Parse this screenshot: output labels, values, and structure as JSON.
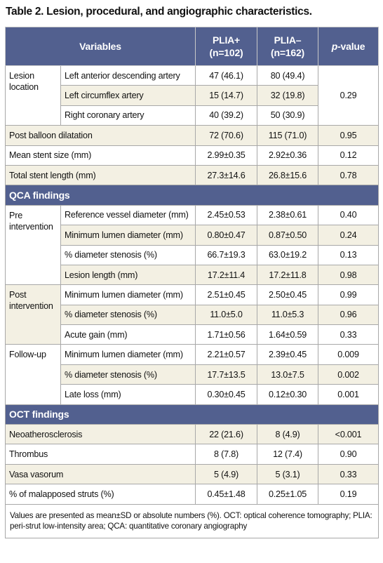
{
  "title": "Table 2. Lesion, procedural, and angiographic characteristics.",
  "header": {
    "variables": "Variables",
    "plia_pos": "PLIA+",
    "plia_pos_n": "(n=102)",
    "plia_neg": "PLIA–",
    "plia_neg_n": "(n=162)",
    "p": "p",
    "p_suffix": "-value"
  },
  "sections": [
    {
      "items": [
        {
          "group": "Lesion location",
          "p_value": "0.29",
          "rows": [
            {
              "variable": "Left anterior descending artery",
              "plia_pos": "47 (46.1)",
              "plia_neg": "80 (49.4)"
            },
            {
              "variable": "Left circumflex artery",
              "plia_pos": "15 (14.7)",
              "plia_neg": "32 (19.8)"
            },
            {
              "variable": "Right coronary artery",
              "plia_pos": "40 (39.2)",
              "plia_neg": "50 (30.9)"
            }
          ]
        },
        {
          "variable": "Post balloon dilatation",
          "plia_pos": "72 (70.6)",
          "plia_neg": "115 (71.0)",
          "p_value": "0.95"
        },
        {
          "variable": "Mean stent size (mm)",
          "plia_pos": "2.99±0.35",
          "plia_neg": "2.92±0.36",
          "p_value": "0.12"
        },
        {
          "variable": "Total stent length (mm)",
          "plia_pos": "27.3±14.6",
          "plia_neg": "26.8±15.6",
          "p_value": "0.78"
        }
      ]
    },
    {
      "heading": "QCA findings",
      "items": [
        {
          "group": "Pre interven­tion",
          "rows": [
            {
              "variable": "Reference vessel diameter (mm)",
              "plia_pos": "2.45±0.53",
              "plia_neg": "2.38±0.61",
              "p_value": "0.40"
            },
            {
              "variable": "Minimum lumen diameter (mm)",
              "plia_pos": "0.80±0.47",
              "plia_neg": "0.87±0.50",
              "p_value": "0.24"
            },
            {
              "variable": "% diameter stenosis (%)",
              "plia_pos": "66.7±19.3",
              "plia_neg": "63.0±19.2",
              "p_value": "0.13"
            },
            {
              "variable": "Lesion length (mm)",
              "plia_pos": "17.2±11.4",
              "plia_neg": "17.2±11.8",
              "p_value": "0.98"
            }
          ]
        },
        {
          "group": "Post interven­tion",
          "rows": [
            {
              "variable": "Minimum lumen diameter (mm)",
              "plia_pos": "2.51±0.45",
              "plia_neg": "2.50±0.45",
              "p_value": "0.99"
            },
            {
              "variable": "% diameter stenosis (%)",
              "plia_pos": "11.0±5.0",
              "plia_neg": "11.0±5.3",
              "p_value": "0.96"
            },
            {
              "variable": "Acute gain (mm)",
              "plia_pos": "1.71±0.56",
              "plia_neg": "1.64±0.59",
              "p_value": "0.33"
            }
          ]
        },
        {
          "group": "Follow-up",
          "rows": [
            {
              "variable": "Minimum lumen diameter (mm)",
              "plia_pos": "2.21±0.57",
              "plia_neg": "2.39±0.45",
              "p_value": "0.009"
            },
            {
              "variable": "% diameter stenosis (%)",
              "plia_pos": "17.7±13.5",
              "plia_neg": "13.0±7.5",
              "p_value": "0.002"
            },
            {
              "variable": "Late loss (mm)",
              "plia_pos": "0.30±0.45",
              "plia_neg": "0.12±0.30",
              "p_value": "0.001"
            }
          ]
        }
      ]
    },
    {
      "heading": "OCT findings",
      "items": [
        {
          "variable": "Neoatherosclerosis",
          "plia_pos": "22 (21.6)",
          "plia_neg": "8 (4.9)",
          "p_value": "<0.001"
        },
        {
          "variable": "Thrombus",
          "plia_pos": "8 (7.8)",
          "plia_neg": "12 (7.4)",
          "p_value": "0.90"
        },
        {
          "variable": "Vasa vasorum",
          "plia_pos": "5 (4.9)",
          "plia_neg": "5 (3.1)",
          "p_value": "0.33"
        },
        {
          "variable": "% of malapposed struts (%)",
          "plia_pos": "0.45±1.48",
          "plia_neg": "0.25±1.05",
          "p_value": "0.19"
        }
      ]
    }
  ],
  "footnote": "Values are presented as mean±SD or absolute numbers (%). OCT: optical coherence tomography; PLIA: peri-strut low-intensity area; QCA: quantitative coronary angiography"
}
